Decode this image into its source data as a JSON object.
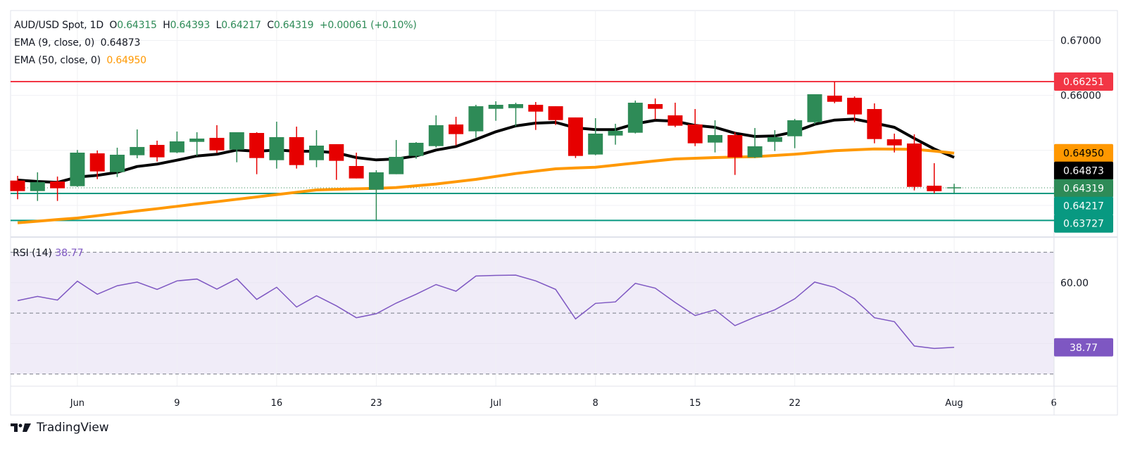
{
  "header": {
    "symbol": "AUD/USD Spot, 1D",
    "o_label": "O",
    "o": "0.64315",
    "h_label": "H",
    "h": "0.64393",
    "l_label": "L",
    "l": "0.64217",
    "c_label": "C",
    "c": "0.64319",
    "change": "+0.00061 (+0.10%)",
    "ema9_label": "EMA (9, close, 0)",
    "ema9_value": "0.64873",
    "ema50_label": "EMA (50, close, 0)",
    "ema50_value": "0.64950"
  },
  "rsi_legend": {
    "label": "RSI (14)",
    "value": "38.77"
  },
  "brand": {
    "name": "TradingView"
  },
  "colors": {
    "up": "#2e8b57",
    "down": "#e60000",
    "ema9": "#000000",
    "ema50": "#ff9800",
    "rsi": "#7e57c2",
    "resistance": "#f23645",
    "support": "#089981",
    "rsi_band": "#f0ecf8"
  },
  "chart_data": [
    {
      "type": "candlestick",
      "title": "AUD/USD Spot, 1D",
      "ylim": [
        0.63424,
        0.67543
      ],
      "grid": true,
      "x_ticks": [
        {
          "label": "Jun",
          "index": 3
        },
        {
          "label": "9",
          "index": 8
        },
        {
          "label": "16",
          "index": 13
        },
        {
          "label": "23",
          "index": 18
        },
        {
          "label": "Jul",
          "index": 24
        },
        {
          "label": "8",
          "index": 29
        },
        {
          "label": "15",
          "index": 34
        },
        {
          "label": "22",
          "index": 39
        },
        {
          "label": "Aug",
          "index": 47
        },
        {
          "label": "6",
          "index": 52
        }
      ],
      "y_ticks": [
        {
          "value": 0.67,
          "label": "0.67000"
        },
        {
          "value": 0.66,
          "label": "0.66000"
        }
      ],
      "gridlines": [
        0.67,
        0.66,
        0.65,
        0.64
      ],
      "candles": [
        {
          "o": 0.64451,
          "h": 0.64537,
          "l": 0.64111,
          "c": 0.6426
        },
        {
          "o": 0.6426,
          "h": 0.64601,
          "l": 0.64081,
          "c": 0.64422
        },
        {
          "o": 0.64435,
          "h": 0.64524,
          "l": 0.64081,
          "c": 0.64311
        },
        {
          "o": 0.64349,
          "h": 0.65007,
          "l": 0.64336,
          "c": 0.64959
        },
        {
          "o": 0.64946,
          "h": 0.64998,
          "l": 0.64477,
          "c": 0.64618
        },
        {
          "o": 0.64605,
          "h": 0.65049,
          "l": 0.64515,
          "c": 0.64921
        },
        {
          "o": 0.64912,
          "h": 0.65381,
          "l": 0.64857,
          "c": 0.65062
        },
        {
          "o": 0.651,
          "h": 0.65177,
          "l": 0.64797,
          "c": 0.64874
        },
        {
          "o": 0.64963,
          "h": 0.65343,
          "l": 0.6495,
          "c": 0.65164
        },
        {
          "o": 0.65155,
          "h": 0.6533,
          "l": 0.64899,
          "c": 0.65215
        },
        {
          "o": 0.65228,
          "h": 0.65458,
          "l": 0.64955,
          "c": 0.65001
        },
        {
          "o": 0.65014,
          "h": 0.6533,
          "l": 0.64784,
          "c": 0.6533
        },
        {
          "o": 0.65317,
          "h": 0.6533,
          "l": 0.64567,
          "c": 0.64861
        },
        {
          "o": 0.64822,
          "h": 0.65522,
          "l": 0.64669,
          "c": 0.65241
        },
        {
          "o": 0.65241,
          "h": 0.65432,
          "l": 0.64669,
          "c": 0.64733
        },
        {
          "o": 0.64822,
          "h": 0.65368,
          "l": 0.64694,
          "c": 0.65087
        },
        {
          "o": 0.65113,
          "h": 0.65113,
          "l": 0.64464,
          "c": 0.6481
        },
        {
          "o": 0.64716,
          "h": 0.64959,
          "l": 0.6449,
          "c": 0.6449
        },
        {
          "o": 0.64285,
          "h": 0.64639,
          "l": 0.63727,
          "c": 0.64601
        },
        {
          "o": 0.64567,
          "h": 0.65189,
          "l": 0.64567,
          "c": 0.64882
        },
        {
          "o": 0.64899,
          "h": 0.65151,
          "l": 0.64848,
          "c": 0.65138
        },
        {
          "o": 0.65078,
          "h": 0.65637,
          "l": 0.65053,
          "c": 0.65458
        },
        {
          "o": 0.65471,
          "h": 0.65611,
          "l": 0.65091,
          "c": 0.65296
        },
        {
          "o": 0.65347,
          "h": 0.65829,
          "l": 0.65232,
          "c": 0.65803
        },
        {
          "o": 0.65756,
          "h": 0.65893,
          "l": 0.65539,
          "c": 0.65829
        },
        {
          "o": 0.65769,
          "h": 0.65867,
          "l": 0.65436,
          "c": 0.65842
        },
        {
          "o": 0.65829,
          "h": 0.6588,
          "l": 0.65372,
          "c": 0.65705
        },
        {
          "o": 0.65803,
          "h": 0.65803,
          "l": 0.65462,
          "c": 0.65551
        },
        {
          "o": 0.65599,
          "h": 0.65599,
          "l": 0.64861,
          "c": 0.64899
        },
        {
          "o": 0.64925,
          "h": 0.65586,
          "l": 0.64912,
          "c": 0.65305
        },
        {
          "o": 0.6527,
          "h": 0.65484,
          "l": 0.65104,
          "c": 0.65356
        },
        {
          "o": 0.65321,
          "h": 0.65906,
          "l": 0.65308,
          "c": 0.65867
        },
        {
          "o": 0.65842,
          "h": 0.65944,
          "l": 0.65564,
          "c": 0.65756
        },
        {
          "o": 0.65637,
          "h": 0.65867,
          "l": 0.65423,
          "c": 0.65449
        },
        {
          "o": 0.65471,
          "h": 0.65752,
          "l": 0.65078,
          "c": 0.65129
        },
        {
          "o": 0.65142,
          "h": 0.65548,
          "l": 0.64963,
          "c": 0.65279
        },
        {
          "o": 0.65279,
          "h": 0.6533,
          "l": 0.64554,
          "c": 0.64874
        },
        {
          "o": 0.64874,
          "h": 0.65407,
          "l": 0.64861,
          "c": 0.65074
        },
        {
          "o": 0.65155,
          "h": 0.65368,
          "l": 0.64989,
          "c": 0.65241
        },
        {
          "o": 0.65257,
          "h": 0.65573,
          "l": 0.6504,
          "c": 0.65548
        },
        {
          "o": 0.65513,
          "h": 0.66021,
          "l": 0.65475,
          "c": 0.66021
        },
        {
          "o": 0.65995,
          "h": 0.66251,
          "l": 0.65858,
          "c": 0.65884
        },
        {
          "o": 0.65957,
          "h": 0.65982,
          "l": 0.65513,
          "c": 0.65654
        },
        {
          "o": 0.65752,
          "h": 0.65855,
          "l": 0.65129,
          "c": 0.65206
        },
        {
          "o": 0.65202,
          "h": 0.65305,
          "l": 0.64963,
          "c": 0.65091
        },
        {
          "o": 0.65125,
          "h": 0.65292,
          "l": 0.64272,
          "c": 0.64336
        },
        {
          "o": 0.64358,
          "h": 0.64767,
          "l": 0.64217,
          "c": 0.64258
        },
        {
          "o": 0.64315,
          "h": 0.64393,
          "l": 0.64217,
          "c": 0.64319
        }
      ],
      "series": [
        {
          "name": "EMA (9, close, 0)",
          "values": [
            0.6446,
            0.64435,
            0.64418,
            0.64515,
            0.64546,
            0.64601,
            0.64707,
            0.64751,
            0.64822,
            0.64899,
            0.6493,
            0.65007,
            0.64985,
            0.65007,
            0.64985,
            0.64985,
            0.64955,
            0.6487,
            0.64827,
            0.64844,
            0.64899,
            0.65007,
            0.6507,
            0.65198,
            0.65339,
            0.65445,
            0.65496,
            0.65509,
            0.65411,
            0.65377,
            0.65377,
            0.65484,
            0.65548,
            0.65531,
            0.65454,
            0.6542,
            0.65313,
            0.65253,
            0.65262,
            0.65339,
            0.65475,
            0.65551,
            0.65569,
            0.65496,
            0.6542,
            0.65219,
            0.65027,
            0.64873
          ]
        },
        {
          "name": "EMA (50, close, 0)",
          "values": [
            0.63684,
            0.63712,
            0.63742,
            0.6377,
            0.63812,
            0.63855,
            0.63898,
            0.6394,
            0.63983,
            0.64026,
            0.64068,
            0.64111,
            0.64153,
            0.64196,
            0.64239,
            0.64281,
            0.64292,
            0.64301,
            0.64311,
            0.64324,
            0.64356,
            0.64388,
            0.64431,
            0.64473,
            0.64527,
            0.64579,
            0.64623,
            0.64665,
            0.6468,
            0.64694,
            0.64733,
            0.64771,
            0.64808,
            0.64844,
            0.64857,
            0.6487,
            0.64879,
            0.64886,
            0.64908,
            0.6493,
            0.64962,
            0.64994,
            0.6501,
            0.65027,
            0.65023,
            0.65019,
            0.64987,
            0.6495
          ]
        }
      ],
      "levels": [
        {
          "value": 0.66251,
          "label": "0.66251",
          "kind": "resistance"
        },
        {
          "value": 0.64217,
          "label": "0.64217",
          "kind": "support"
        },
        {
          "value": 0.63727,
          "label": "0.63727",
          "kind": "support"
        }
      ],
      "price_labels": [
        {
          "value": 0.6495,
          "label": "0.64950",
          "bg": "#ff9800",
          "fg": "#000000"
        },
        {
          "value": 0.64873,
          "label": "0.64873",
          "bg": "#000000",
          "fg": "#ffffff"
        },
        {
          "value": 0.64319,
          "label": "0.64319",
          "bg": "#2e8b57",
          "fg": "#ffffff"
        }
      ],
      "last_price": 0.64319
    },
    {
      "type": "line",
      "title": "RSI (14)",
      "ylim": [
        26,
        75
      ],
      "bands": {
        "upper": 70,
        "middle": 50,
        "lower": 30
      },
      "gridlines": [
        60,
        40
      ],
      "y_ticks": [
        {
          "value": 60,
          "label": "60.00"
        }
      ],
      "last_label": {
        "value": 38.77,
        "label": "38.77"
      },
      "series": [
        {
          "name": "RSI (14)",
          "values": [
            54.1,
            55.5,
            54.3,
            60.5,
            56.2,
            59.0,
            60.2,
            57.8,
            60.6,
            61.2,
            57.9,
            61.3,
            54.5,
            58.5,
            52.0,
            55.7,
            52.4,
            48.5,
            49.8,
            53.3,
            56.2,
            59.4,
            57.2,
            62.2,
            62.4,
            62.5,
            60.6,
            57.8,
            48.1,
            53.2,
            53.7,
            59.8,
            58.2,
            53.5,
            49.2,
            51.1,
            45.9,
            48.7,
            51.1,
            54.7,
            60.2,
            58.5,
            54.7,
            48.5,
            47.2,
            39.2,
            38.4,
            38.77
          ]
        }
      ]
    }
  ]
}
